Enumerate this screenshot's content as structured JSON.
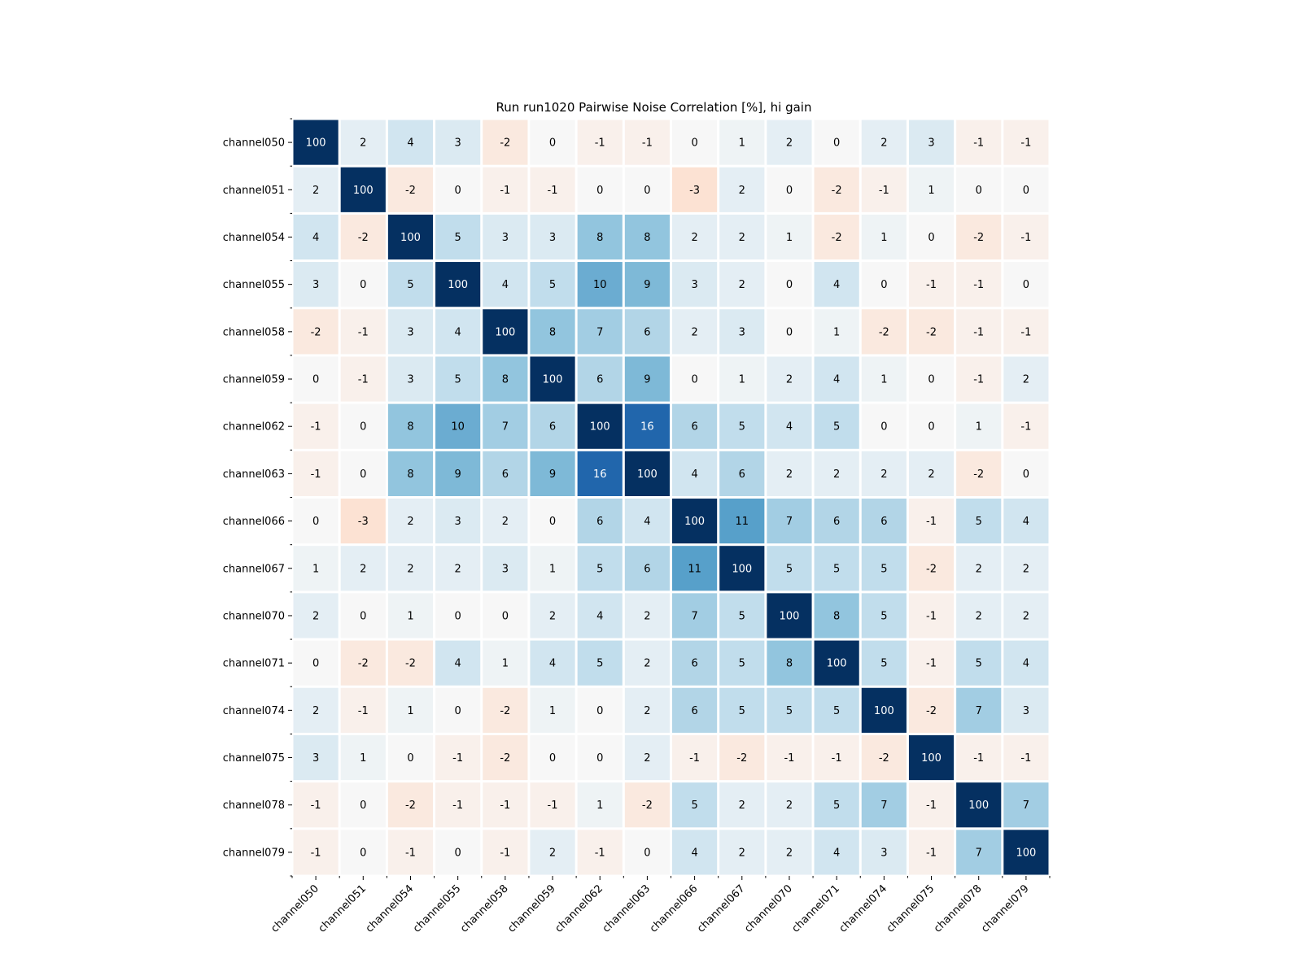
{
  "chart_data": {
    "type": "heatmap",
    "title": "Run run1020 Pairwise Noise Correlation [%], hi gain",
    "xlabel": "",
    "ylabel": "",
    "labels": [
      "channel050",
      "channel051",
      "channel054",
      "channel055",
      "channel058",
      "channel059",
      "channel062",
      "channel063",
      "channel066",
      "channel067",
      "channel070",
      "channel071",
      "channel074",
      "channel075",
      "channel078",
      "channel079"
    ],
    "values": [
      [
        100,
        2,
        4,
        3,
        -2,
        0,
        -1,
        -1,
        0,
        1,
        2,
        0,
        2,
        3,
        -1,
        -1
      ],
      [
        2,
        100,
        -2,
        0,
        -1,
        -1,
        0,
        0,
        -3,
        2,
        0,
        -2,
        -1,
        1,
        0,
        0
      ],
      [
        4,
        -2,
        100,
        5,
        3,
        3,
        8,
        8,
        2,
        2,
        1,
        -2,
        1,
        0,
        -2,
        -1
      ],
      [
        3,
        0,
        5,
        100,
        4,
        5,
        10,
        9,
        3,
        2,
        0,
        4,
        0,
        -1,
        -1,
        0
      ],
      [
        -2,
        -1,
        3,
        4,
        100,
        8,
        7,
        6,
        2,
        3,
        0,
        1,
        -2,
        -2,
        -1,
        -1
      ],
      [
        0,
        -1,
        3,
        5,
        8,
        100,
        6,
        9,
        0,
        1,
        2,
        4,
        1,
        0,
        -1,
        2
      ],
      [
        -1,
        0,
        8,
        10,
        7,
        6,
        100,
        16,
        6,
        5,
        4,
        5,
        0,
        0,
        1,
        -1
      ],
      [
        -1,
        0,
        8,
        9,
        6,
        9,
        16,
        100,
        4,
        6,
        2,
        2,
        2,
        2,
        -2,
        0
      ],
      [
        0,
        -3,
        2,
        3,
        2,
        0,
        6,
        4,
        100,
        11,
        7,
        6,
        6,
        -1,
        5,
        4
      ],
      [
        1,
        2,
        2,
        2,
        3,
        1,
        5,
        6,
        11,
        100,
        5,
        5,
        5,
        -2,
        2,
        2
      ],
      [
        2,
        0,
        1,
        0,
        0,
        2,
        4,
        2,
        7,
        5,
        100,
        8,
        5,
        -1,
        2,
        2
      ],
      [
        0,
        -2,
        -2,
        4,
        1,
        4,
        5,
        2,
        6,
        5,
        8,
        100,
        5,
        -1,
        5,
        4
      ],
      [
        2,
        -1,
        1,
        0,
        -2,
        1,
        0,
        2,
        6,
        5,
        5,
        5,
        100,
        -2,
        7,
        3
      ],
      [
        3,
        1,
        0,
        -1,
        -2,
        0,
        0,
        2,
        -1,
        -2,
        -1,
        -1,
        -2,
        100,
        -1,
        -1
      ],
      [
        -1,
        0,
        -2,
        -1,
        -1,
        -1,
        1,
        -2,
        5,
        2,
        2,
        5,
        7,
        -1,
        100,
        7
      ],
      [
        -1,
        0,
        -1,
        0,
        -1,
        2,
        -1,
        0,
        4,
        2,
        2,
        4,
        3,
        -1,
        7,
        100
      ]
    ],
    "colormap": "RdBu",
    "color_range": [
      -20,
      20
    ],
    "cell_labels": true,
    "grid": false,
    "legend": "none",
    "colors": {
      "cell_border": "#ffffff",
      "text_dark": "#000000",
      "text_light": "#ffffff"
    }
  }
}
